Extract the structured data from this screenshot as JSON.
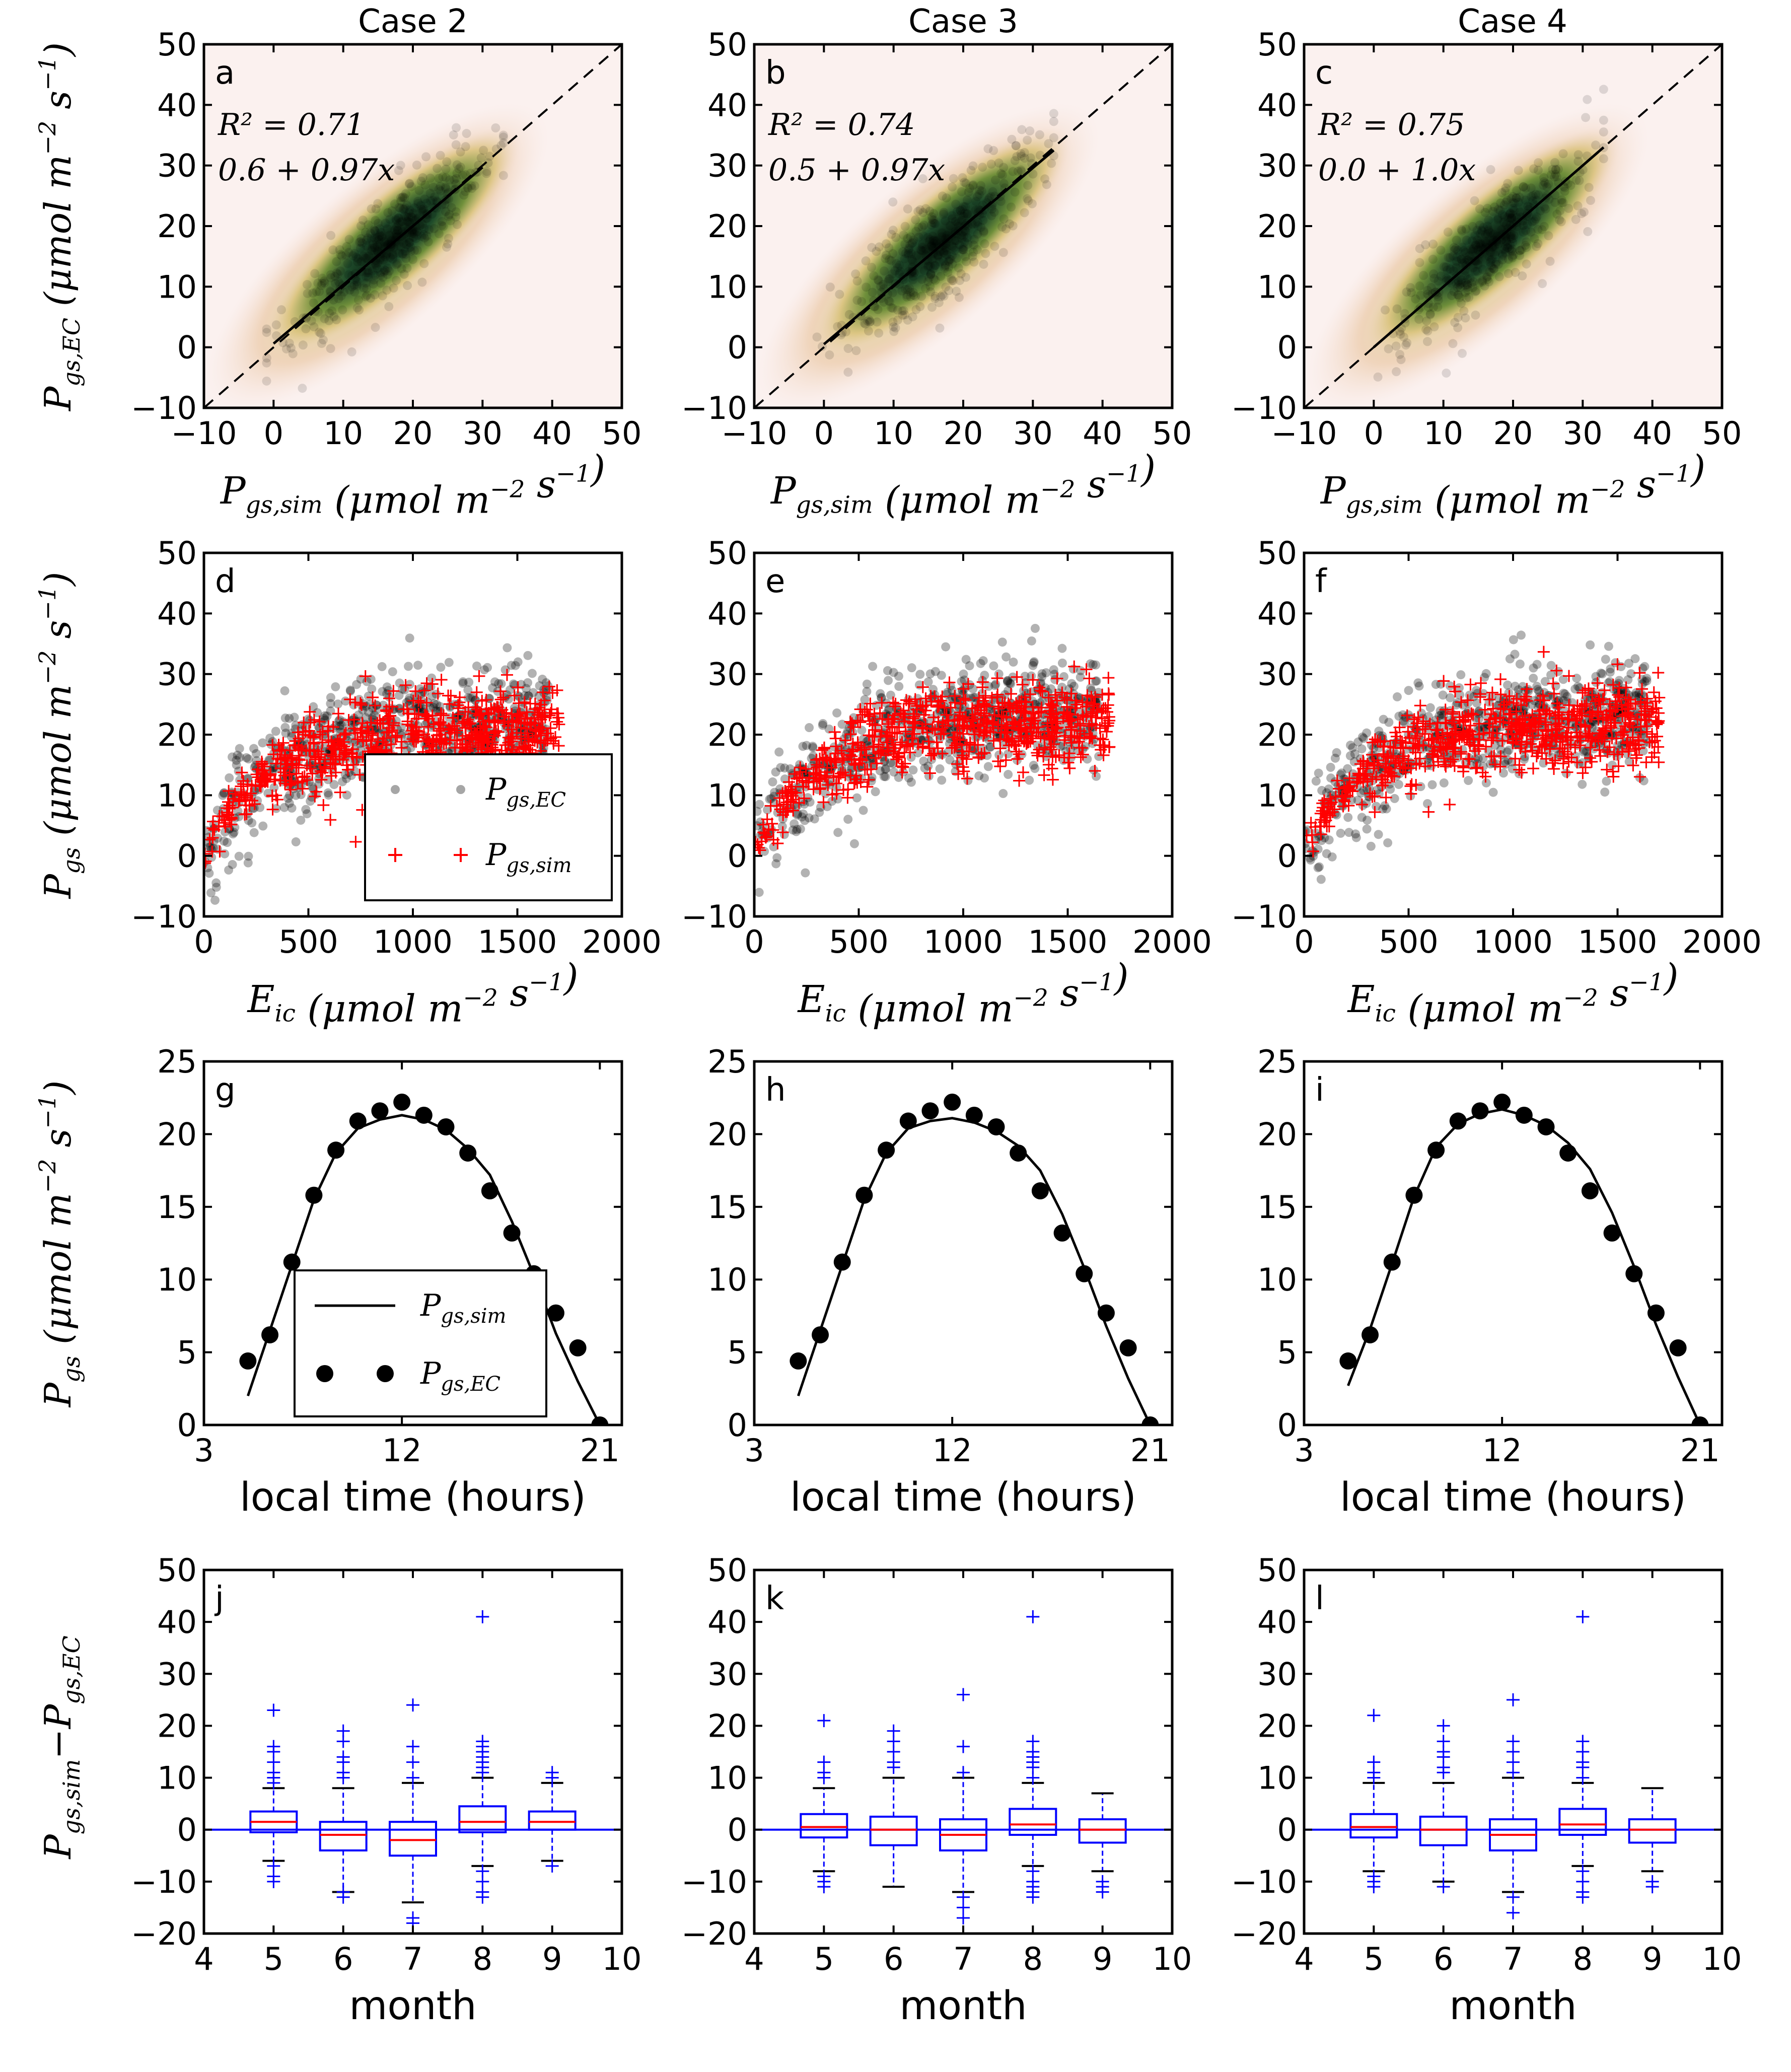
{
  "colors": {
    "observed": "#000000",
    "simulated": "#ff0000",
    "box": "#0000ff",
    "median": "#ff0000",
    "zero_line": "#0000ff"
  },
  "columns": [
    "Case 2",
    "Case 3",
    "Case 4"
  ],
  "axis_labels": {
    "row1_x": "P_{gs,sim} (μmol m^{-2} s^{-1})",
    "row1_y": "P_{gs,EC} (μmol m^{-2} s^{-1})",
    "row2_x": "E_{ic} (μmol m^{-2} s^{-1})",
    "row2_y": "P_{gs} (μmol m^{-2} s^{-1})",
    "row3_x": "local time (hours)",
    "row3_y": "P_{gs} (μmol m^{-2} s^{-1})",
    "row4_x": "month",
    "row4_y": "P_{gs,sim} − P_{gs,EC}"
  },
  "legends": {
    "row2": [
      {
        "label": "P_{gs,EC}",
        "marker": "black dot"
      },
      {
        "label": "P_{gs,sim}",
        "marker": "red plus"
      }
    ],
    "row3": [
      {
        "label": "P_{gs,sim}",
        "marker": "line"
      },
      {
        "label": "P_{gs,EC}",
        "marker": "black dot"
      }
    ]
  },
  "chart_data": [
    {
      "panel": "a",
      "type": "scatter",
      "column": "Case 2",
      "xlim": [
        -10,
        50
      ],
      "ylim": [
        -10,
        50
      ],
      "xticks": [
        -10,
        0,
        10,
        20,
        30,
        40,
        50
      ],
      "yticks": [
        -10,
        0,
        10,
        20,
        30,
        40,
        50
      ],
      "r2_text": "R² = 0.71",
      "fit_text": "0.6 + 0.97x",
      "r2": 0.71,
      "intercept": 0.6,
      "slope": 0.97,
      "fit_xrange": [
        0,
        30
      ]
    },
    {
      "panel": "b",
      "type": "scatter",
      "column": "Case 3",
      "xlim": [
        -10,
        50
      ],
      "ylim": [
        -10,
        50
      ],
      "xticks": [
        -10,
        0,
        10,
        20,
        30,
        40,
        50
      ],
      "yticks": [
        -10,
        0,
        10,
        20,
        30,
        40,
        50
      ],
      "r2_text": "R² = 0.74",
      "fit_text": "0.5 + 0.97x",
      "r2": 0.74,
      "intercept": 0.5,
      "slope": 0.97,
      "fit_xrange": [
        0,
        33
      ]
    },
    {
      "panel": "c",
      "type": "scatter",
      "column": "Case 4",
      "xlim": [
        -10,
        50
      ],
      "ylim": [
        -10,
        50
      ],
      "xticks": [
        -10,
        0,
        10,
        20,
        30,
        40,
        50
      ],
      "yticks": [
        -10,
        0,
        10,
        20,
        30,
        40,
        50
      ],
      "r2_text": "R² = 0.75",
      "fit_text": "0.0 + 1.0x",
      "r2": 0.75,
      "intercept": 0.0,
      "slope": 1.0,
      "fit_xrange": [
        0,
        33
      ]
    },
    {
      "panel": "d",
      "type": "scatter",
      "column": "Case 2",
      "xlim": [
        0,
        2000
      ],
      "ylim": [
        -10,
        50
      ],
      "xticks": [
        0,
        500,
        1000,
        1500,
        2000
      ],
      "yticks": [
        -10,
        0,
        10,
        20,
        30,
        40,
        50
      ],
      "series": [
        {
          "name": "P_gs,EC",
          "curve": "observed cloud, saturating near 20-25 above 1000"
        },
        {
          "name": "P_gs,sim",
          "curve": "saturating, plateau ~20 above 1000"
        }
      ],
      "plateau": 20
    },
    {
      "panel": "e",
      "type": "scatter",
      "column": "Case 3",
      "xlim": [
        0,
        2000
      ],
      "ylim": [
        -10,
        50
      ],
      "xticks": [
        0,
        500,
        1000,
        1500,
        2000
      ],
      "yticks": [
        -10,
        0,
        10,
        20,
        30,
        40,
        50
      ],
      "plateau": 21
    },
    {
      "panel": "f",
      "type": "scatter",
      "column": "Case 4",
      "xlim": [
        0,
        2000
      ],
      "ylim": [
        -10,
        50
      ],
      "xticks": [
        0,
        500,
        1000,
        1500,
        2000
      ],
      "yticks": [
        -10,
        0,
        10,
        20,
        30,
        40,
        50
      ],
      "plateau": 21
    },
    {
      "panel": "g",
      "type": "line",
      "column": "Case 2",
      "xlim": [
        3,
        22
      ],
      "ylim": [
        0,
        25
      ],
      "xticks": [
        3,
        12,
        21
      ],
      "yticks": [
        0,
        5,
        10,
        15,
        20,
        25
      ],
      "obs_x": [
        5,
        6,
        7,
        8,
        9,
        10,
        11,
        12,
        13,
        14,
        15,
        16,
        17,
        18,
        19,
        20,
        21
      ],
      "obs_y": [
        4.4,
        6.2,
        11.2,
        15.8,
        18.9,
        20.9,
        21.6,
        22.2,
        21.3,
        20.5,
        18.7,
        16.1,
        13.2,
        10.4,
        7.7,
        5.3,
        0.0
      ],
      "sim_x": [
        5,
        6,
        7,
        8,
        9,
        10,
        11,
        12,
        13,
        14,
        15,
        16,
        17,
        18,
        19,
        20,
        21
      ],
      "sim_y": [
        2.0,
        6.5,
        11.0,
        15.5,
        18.7,
        20.4,
        21.0,
        21.3,
        21.0,
        20.3,
        19.0,
        17.2,
        14.0,
        10.3,
        6.3,
        3.0,
        0.0
      ]
    },
    {
      "panel": "h",
      "type": "line",
      "column": "Case 3",
      "xlim": [
        3,
        22
      ],
      "ylim": [
        0,
        25
      ],
      "xticks": [
        3,
        12,
        21
      ],
      "yticks": [
        0,
        5,
        10,
        15,
        20,
        25
      ],
      "obs_x": [
        5,
        6,
        7,
        8,
        9,
        10,
        11,
        12,
        13,
        14,
        15,
        16,
        17,
        18,
        19,
        20,
        21
      ],
      "obs_y": [
        4.4,
        6.2,
        11.2,
        15.8,
        18.9,
        20.9,
        21.6,
        22.2,
        21.3,
        20.5,
        18.7,
        16.1,
        13.2,
        10.4,
        7.7,
        5.3,
        0.0
      ],
      "sim_x": [
        5,
        6,
        7,
        8,
        9,
        10,
        11,
        12,
        13,
        14,
        15,
        16,
        17,
        18,
        19,
        20,
        21
      ],
      "sim_y": [
        2.0,
        6.5,
        11.0,
        15.5,
        18.7,
        20.4,
        20.9,
        21.1,
        20.8,
        20.2,
        19.2,
        17.5,
        14.5,
        10.8,
        6.8,
        3.2,
        0.0
      ]
    },
    {
      "panel": "i",
      "type": "line",
      "column": "Case 4",
      "xlim": [
        3,
        22
      ],
      "ylim": [
        0,
        25
      ],
      "xticks": [
        3,
        12,
        21
      ],
      "yticks": [
        0,
        5,
        10,
        15,
        20,
        25
      ],
      "obs_x": [
        5,
        6,
        7,
        8,
        9,
        10,
        11,
        12,
        13,
        14,
        15,
        16,
        17,
        18,
        19,
        20,
        21
      ],
      "obs_y": [
        4.4,
        6.2,
        11.2,
        15.8,
        18.9,
        20.9,
        21.6,
        22.2,
        21.3,
        20.5,
        18.7,
        16.1,
        13.2,
        10.4,
        7.7,
        5.3,
        0.0
      ],
      "sim_x": [
        5,
        6,
        7,
        8,
        9,
        10,
        11,
        12,
        13,
        14,
        15,
        16,
        17,
        18,
        19,
        20,
        21
      ],
      "sim_y": [
        2.7,
        6.6,
        11.1,
        15.7,
        19.1,
        20.7,
        21.4,
        21.7,
        21.3,
        20.6,
        19.4,
        17.6,
        14.6,
        10.9,
        6.9,
        3.3,
        0.0
      ]
    },
    {
      "panel": "j",
      "type": "box",
      "column": "Case 2",
      "xlim": [
        4,
        10
      ],
      "ylim": [
        -20,
        50
      ],
      "xticks": [
        4,
        5,
        6,
        7,
        8,
        9,
        10
      ],
      "yticks": [
        -20,
        -10,
        0,
        10,
        20,
        30,
        40,
        50
      ],
      "boxes": [
        {
          "month": 5,
          "q1": -0.5,
          "median": 1.5,
          "q3": 3.5,
          "whisk_lo": -6,
          "whisk_hi": 8,
          "fliers_hi": [
            9,
            10,
            11,
            13,
            15,
            16,
            23
          ],
          "fliers_lo": [
            -7,
            -9,
            -10
          ]
        },
        {
          "month": 6,
          "q1": -4,
          "median": -1,
          "q3": 1.5,
          "whisk_lo": -12,
          "whisk_hi": 8,
          "fliers_hi": [
            10,
            11,
            13,
            14,
            17,
            19
          ],
          "fliers_lo": [
            -12,
            -13
          ]
        },
        {
          "month": 7,
          "q1": -5,
          "median": -2,
          "q3": 1.5,
          "whisk_lo": -14,
          "whisk_hi": 9,
          "fliers_hi": [
            10,
            13,
            16,
            24
          ],
          "fliers_lo": [
            -17,
            -18
          ]
        },
        {
          "month": 8,
          "q1": -0.5,
          "median": 1.5,
          "q3": 4.5,
          "whisk_lo": -7,
          "whisk_hi": 10,
          "fliers_hi": [
            11,
            12,
            13,
            14,
            15,
            16,
            17,
            41
          ],
          "fliers_lo": [
            -8,
            -10,
            -12,
            -13
          ]
        },
        {
          "month": 9,
          "q1": 0,
          "median": 1.5,
          "q3": 3.5,
          "whisk_lo": -6,
          "whisk_hi": 9,
          "fliers_hi": [
            10,
            11
          ],
          "fliers_lo": [
            -7
          ]
        }
      ]
    },
    {
      "panel": "k",
      "type": "box",
      "column": "Case 3",
      "xlim": [
        4,
        10
      ],
      "ylim": [
        -20,
        50
      ],
      "xticks": [
        4,
        5,
        6,
        7,
        8,
        9,
        10
      ],
      "yticks": [
        -20,
        -10,
        0,
        10,
        20,
        30,
        40,
        50
      ],
      "boxes": [
        {
          "month": 5,
          "q1": -1.5,
          "median": 0.5,
          "q3": 3,
          "whisk_lo": -8,
          "whisk_hi": 8,
          "fliers_hi": [
            10,
            11,
            13,
            21
          ],
          "fliers_lo": [
            -9,
            -10,
            -11
          ]
        },
        {
          "month": 6,
          "q1": -3,
          "median": 0,
          "q3": 2.5,
          "whisk_lo": -11,
          "whisk_hi": 10,
          "fliers_hi": [
            12,
            13,
            15,
            17,
            19
          ],
          "fliers_lo": []
        },
        {
          "month": 7,
          "q1": -4,
          "median": -1,
          "q3": 2,
          "whisk_lo": -12,
          "whisk_hi": 10,
          "fliers_hi": [
            11,
            16,
            26
          ],
          "fliers_lo": [
            -13,
            -15,
            -17
          ]
        },
        {
          "month": 8,
          "q1": -1,
          "median": 1,
          "q3": 4,
          "whisk_lo": -7,
          "whisk_hi": 9,
          "fliers_hi": [
            10,
            12,
            13,
            14,
            15,
            17,
            41
          ],
          "fliers_lo": [
            -8,
            -10,
            -11,
            -12,
            -13
          ]
        },
        {
          "month": 9,
          "q1": -2.5,
          "median": 0,
          "q3": 2,
          "whisk_lo": -8,
          "whisk_hi": 7,
          "fliers_hi": [],
          "fliers_lo": [
            -10,
            -11,
            -12
          ]
        }
      ]
    },
    {
      "panel": "l",
      "type": "box",
      "column": "Case 4",
      "xlim": [
        4,
        10
      ],
      "ylim": [
        -20,
        50
      ],
      "xticks": [
        4,
        5,
        6,
        7,
        8,
        9,
        10
      ],
      "yticks": [
        -20,
        -10,
        0,
        10,
        20,
        30,
        40,
        50
      ],
      "boxes": [
        {
          "month": 5,
          "q1": -1.5,
          "median": 0.5,
          "q3": 3,
          "whisk_lo": -8,
          "whisk_hi": 9,
          "fliers_hi": [
            10,
            11,
            13,
            22
          ],
          "fliers_lo": [
            -9,
            -10,
            -11
          ]
        },
        {
          "month": 6,
          "q1": -3,
          "median": 0,
          "q3": 2.5,
          "whisk_lo": -10,
          "whisk_hi": 9,
          "fliers_hi": [
            11,
            12,
            14,
            15,
            17,
            20
          ],
          "fliers_lo": [
            -11
          ]
        },
        {
          "month": 7,
          "q1": -4,
          "median": -1,
          "q3": 2,
          "whisk_lo": -12,
          "whisk_hi": 10,
          "fliers_hi": [
            11,
            13,
            15,
            17,
            25
          ],
          "fliers_lo": [
            -13,
            -16
          ]
        },
        {
          "month": 8,
          "q1": -1,
          "median": 1,
          "q3": 4,
          "whisk_lo": -7,
          "whisk_hi": 9,
          "fliers_hi": [
            10,
            12,
            13,
            15,
            17,
            41
          ],
          "fliers_lo": [
            -8,
            -10,
            -12,
            -13
          ]
        },
        {
          "month": 9,
          "q1": -2.5,
          "median": 0,
          "q3": 2,
          "whisk_lo": -8,
          "whisk_hi": 8,
          "fliers_hi": [],
          "fliers_lo": [
            -10,
            -11
          ]
        }
      ]
    }
  ]
}
